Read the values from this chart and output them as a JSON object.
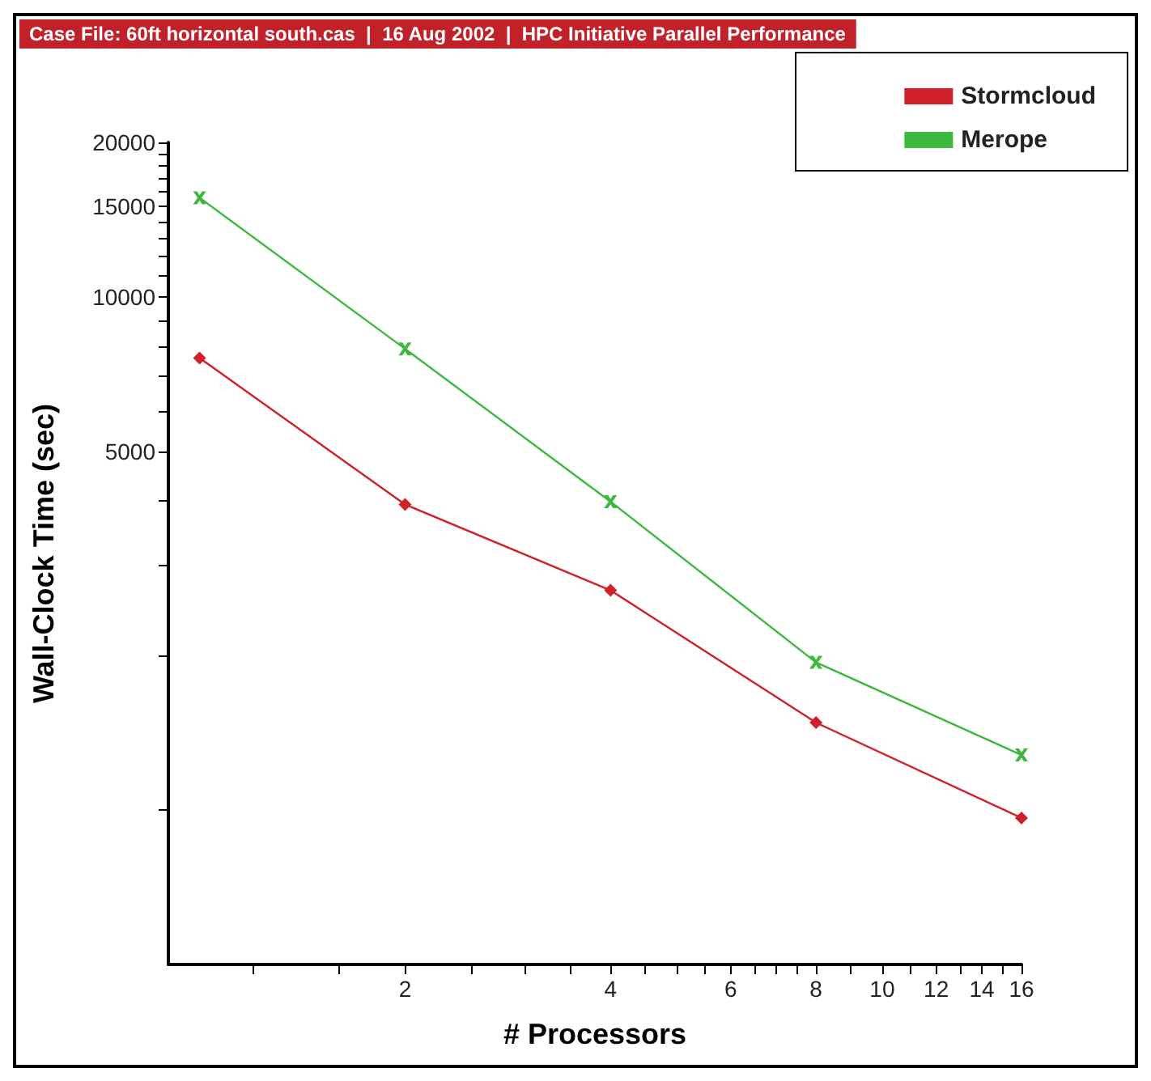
{
  "chart_data": {
    "type": "line",
    "title": "Case File: 60ft horizontal south.cas  |  16 Aug 2002  |  HPC Initiative Parallel Performance",
    "xlabel": "# Processors",
    "ylabel": "Wall-Clock Time (sec)",
    "log": "xy",
    "x": [
      1,
      2,
      4,
      8,
      16
    ],
    "xlim": [
      0.9,
      16
    ],
    "xticks": [
      {
        "value": 1.2,
        "label": null
      },
      {
        "value": 1.6,
        "label": null
      },
      2,
      {
        "value": 2.5,
        "label": null
      },
      {
        "value": 3,
        "label": null
      },
      {
        "value": 3.5,
        "label": null
      },
      4,
      {
        "value": 4.5,
        "label": null
      },
      {
        "value": 5,
        "label": null
      },
      {
        "value": 5.5,
        "label": null
      },
      6,
      {
        "value": 6.5,
        "label": null
      },
      {
        "value": 7,
        "label": null
      },
      {
        "value": 7.5,
        "label": null
      },
      8,
      {
        "value": 9,
        "label": null
      },
      10,
      {
        "value": 11,
        "label": null
      },
      12,
      {
        "value": 13,
        "label": null
      },
      14,
      {
        "value": 15,
        "label": null
      },
      16
    ],
    "ylim": [
      500,
      20000
    ],
    "yticks": [
      {
        "value": 1000,
        "label": null
      },
      {
        "value": 2000,
        "label": null
      },
      {
        "value": 3000,
        "label": null
      },
      {
        "value": 4000,
        "label": null
      },
      5000,
      {
        "value": 6000,
        "label": null
      },
      {
        "value": 7000,
        "label": null
      },
      {
        "value": 8000,
        "label": null
      },
      {
        "value": 9000,
        "label": null
      },
      10000,
      {
        "value": 11000,
        "label": null
      },
      {
        "value": 12000,
        "label": null
      },
      {
        "value": 13000,
        "label": null
      },
      {
        "value": 14000,
        "label": null
      },
      15000,
      {
        "value": 16000,
        "label": null
      },
      {
        "value": 17000,
        "label": null
      },
      {
        "value": 18000,
        "label": null
      },
      {
        "value": 19000,
        "label": null
      },
      20000
    ],
    "series": [
      {
        "name": "Stormcloud",
        "color": "#d0202a",
        "marker": "diamond",
        "values": [
          7600,
          3940,
          2680,
          1480,
          965
        ]
      },
      {
        "name": "Merope",
        "color": "#3cb83c",
        "marker": "cross",
        "values": [
          15600,
          7920,
          3990,
          1940,
          1280
        ]
      }
    ],
    "grid": false,
    "legend": "top right",
    "line_style": "solid"
  }
}
